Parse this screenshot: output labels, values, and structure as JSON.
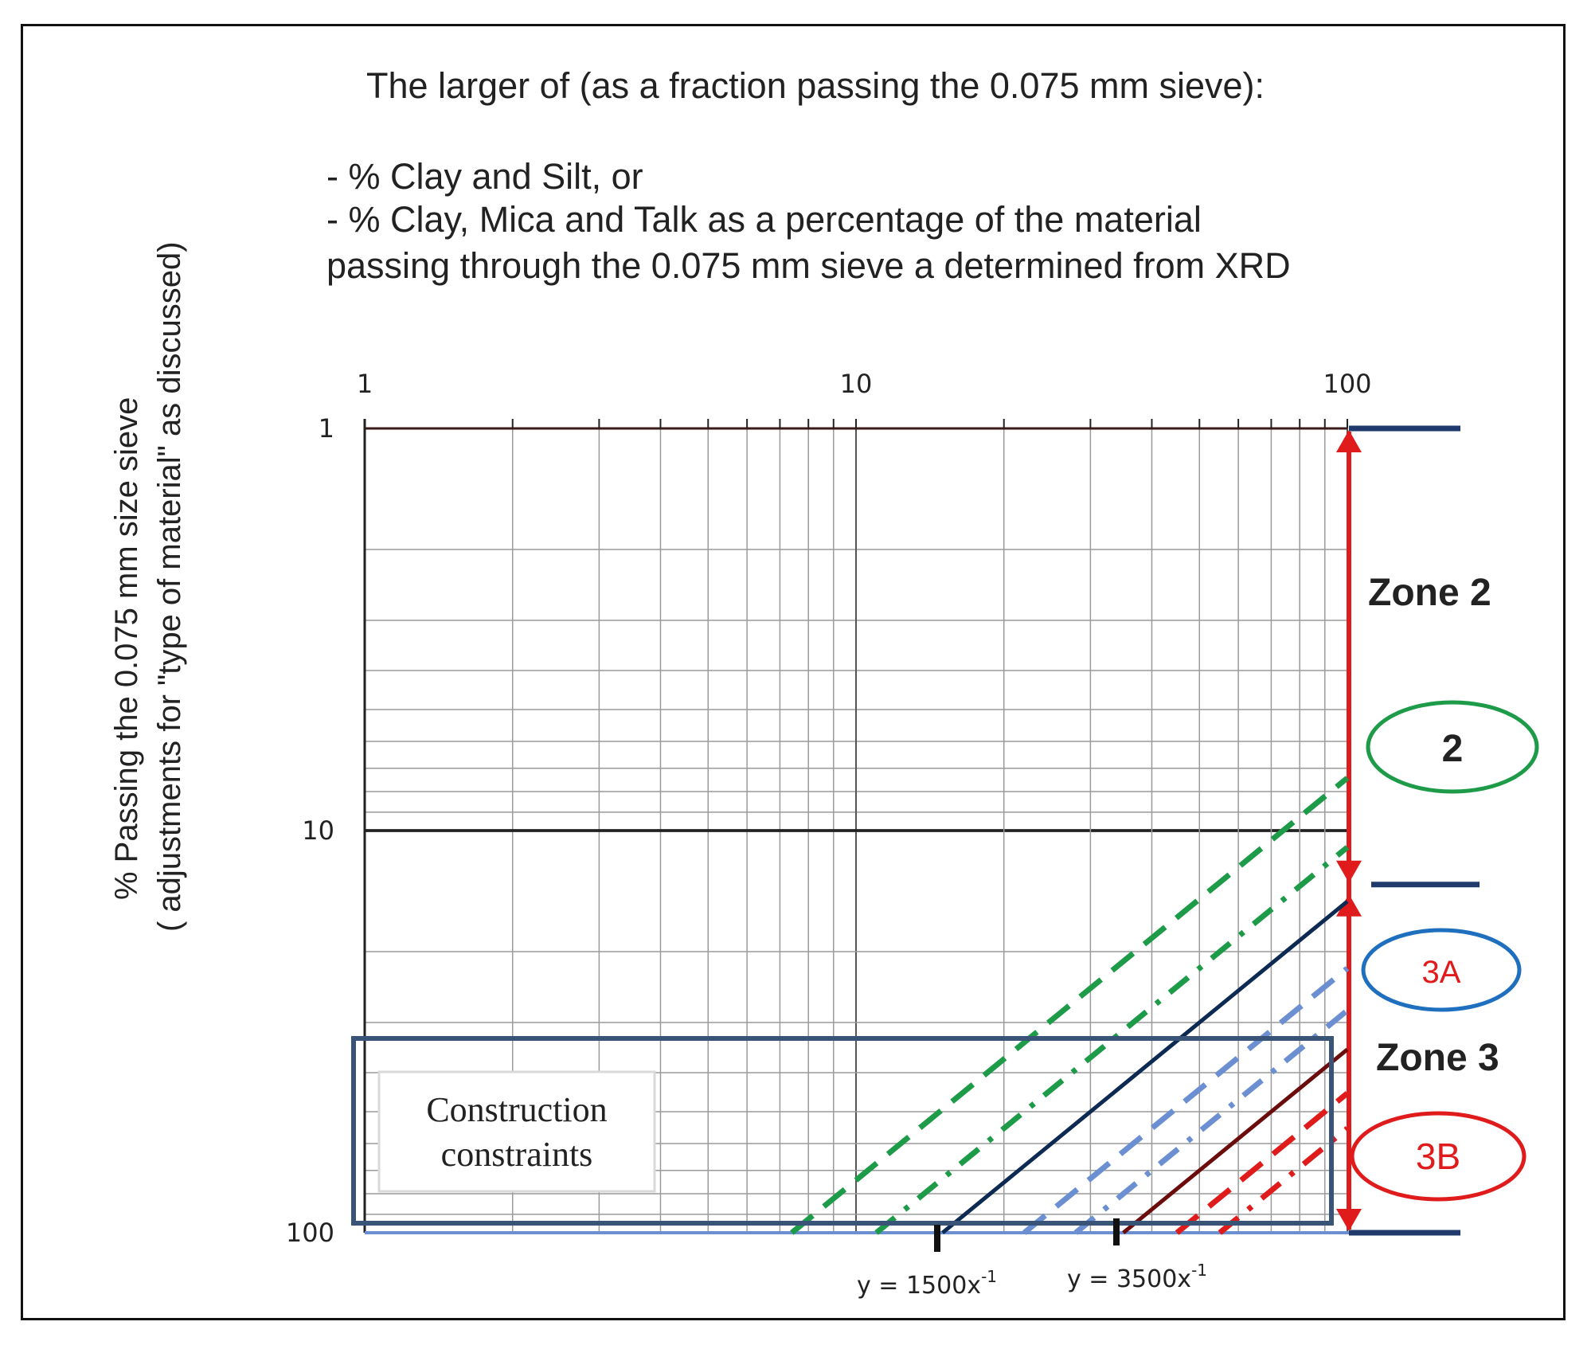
{
  "header": {
    "title": "The larger of (as a fraction passing the 0.075 mm sieve):",
    "line1": "- % Clay and  Silt, or",
    "line2": "- % Clay, Mica and Talk as a percentage of the   material",
    "line3": "passing through the 0.075 mm sieve a determined from XRD"
  },
  "axes": {
    "y_label_line1": "% Passing the 0.075  mm size sieve",
    "y_label_line2": "( adjustments for \"type of material\" as discussed)",
    "x_ticks": [
      "1",
      "10",
      "100"
    ],
    "y_ticks": [
      "1",
      "10",
      "100"
    ]
  },
  "annotations": {
    "zone2": "Zone 2",
    "zone3": "Zone 3",
    "badge_2": "2",
    "badge_3a": "3A",
    "badge_3b": "3B",
    "constraints_line1": "Construction",
    "constraints_line2": "constraints",
    "eq1": "y = 1500x",
    "eq1_exp": "-1",
    "eq2": "y = 3500x",
    "eq2_exp": "-1"
  },
  "colors": {
    "green": "#1e9b48",
    "blue_dark": "#0d2a52",
    "blue_light": "#6b8fd0",
    "red": "#e01b1b",
    "dark_red": "#6b0d0d",
    "box": "#3a5478",
    "grid": "#9a9a9a"
  },
  "chart_data": {
    "type": "line",
    "x_scale": "log",
    "y_scale": "log",
    "y_inverted": true,
    "xlim": [
      1,
      100
    ],
    "ylim": [
      1,
      100
    ],
    "x_ticks": [
      1,
      10,
      100
    ],
    "y_ticks": [
      1,
      10,
      100
    ],
    "grid": true,
    "series": [
      {
        "name": "y = 1500x",
        "style": "solid",
        "color": "blue_dark",
        "x": [
          15,
          100
        ],
        "y": [
          100,
          15
        ]
      },
      {
        "name": "y = 3500x",
        "style": "solid",
        "color": "dark_red",
        "x": [
          35,
          100
        ],
        "y": [
          100,
          35
        ]
      },
      {
        "style": "dashed",
        "color": "green",
        "x": [
          7.4,
          100
        ],
        "y": [
          100,
          7.4
        ]
      },
      {
        "style": "dash-dot",
        "color": "green",
        "x": [
          11,
          100
        ],
        "y": [
          100,
          11
        ]
      },
      {
        "style": "dashed",
        "color": "blue_light",
        "x": [
          22,
          100
        ],
        "y": [
          100,
          22
        ]
      },
      {
        "style": "dash-dot",
        "color": "blue_light",
        "x": [
          28,
          100
        ],
        "y": [
          100,
          28
        ]
      },
      {
        "style": "dashed",
        "color": "red",
        "x": [
          45,
          100
        ],
        "y": [
          100,
          45
        ]
      },
      {
        "style": "dash-dot",
        "color": "red",
        "x": [
          55,
          100
        ],
        "y": [
          100,
          55
        ]
      }
    ],
    "zones": [
      {
        "label": "Zone 2",
        "y_range": [
          1,
          14
        ]
      },
      {
        "label": "Zone 3",
        "y_range": [
          14,
          100
        ]
      }
    ]
  }
}
